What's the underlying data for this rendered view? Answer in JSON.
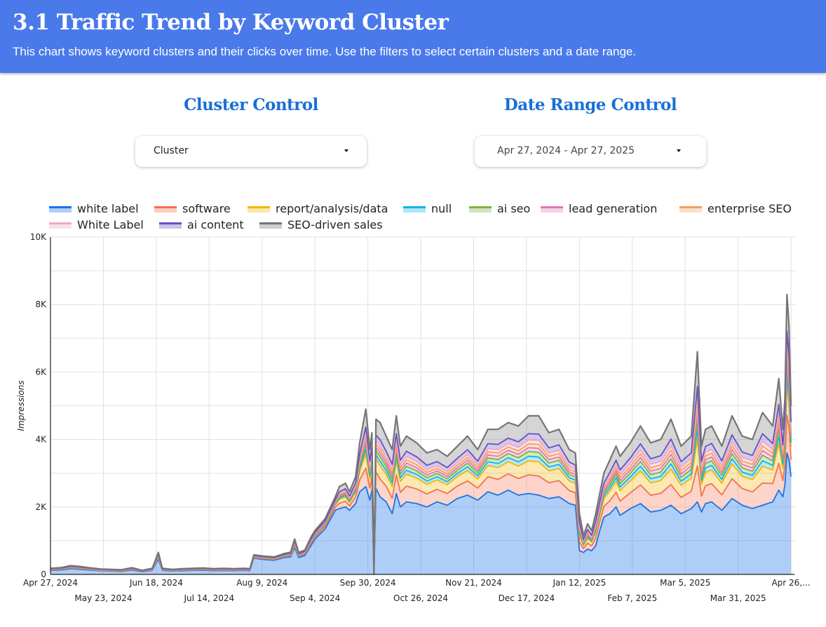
{
  "header": {
    "title": "3.1 Traffic Trend by Keyword Cluster",
    "subtitle": "This chart shows keyword clusters and their clicks over time. Use the filters to select certain clusters and a date range."
  },
  "controls": {
    "cluster": {
      "title": "Cluster Control",
      "value": "Cluster"
    },
    "date_range": {
      "title": "Date Range Control",
      "value": "Apr 27, 2024 - Apr 27, 2025"
    }
  },
  "chart_data": {
    "type": "area",
    "stacked": true,
    "title": "",
    "xlabel": "",
    "ylabel": "Impressions",
    "ylim": [
      0,
      10000
    ],
    "y_ticks": [
      "0",
      "2K",
      "4K",
      "6K",
      "8K",
      "10K"
    ],
    "y_tick_values": [
      0,
      2000,
      4000,
      6000,
      8000,
      10000
    ],
    "x_ticks_row1": [
      "Apr 27, 2024",
      "Jun 18, 2024",
      "Aug 9, 2024",
      "Sep 30, 2024",
      "Nov 21, 2024",
      "Jan 12, 2025",
      "Mar 5, 2025",
      "Apr 26,..."
    ],
    "x_ticks_row2": [
      "May 23, 2024",
      "Jul 14, 2024",
      "Sep 4, 2024",
      "Oct 26, 2024",
      "Dec 17, 2024",
      "Feb 7, 2025",
      "Mar 31, 2025"
    ],
    "x_tick_days_row1": [
      0,
      52,
      104,
      156,
      208,
      260,
      312,
      364
    ],
    "x_tick_days_row2": [
      26,
      78,
      130,
      182,
      234,
      286,
      338
    ],
    "x_range_days": [
      0,
      365
    ],
    "grid": true,
    "legend_position": "top",
    "series": [
      {
        "name": "white label",
        "color": "#1a73e8"
      },
      {
        "name": "software",
        "color": "#f4714e"
      },
      {
        "name": "report/analysis/data",
        "color": "#f6b400"
      },
      {
        "name": "null",
        "color": "#12b5e8"
      },
      {
        "name": "ai seo",
        "color": "#7cb342"
      },
      {
        "name": "lead generation",
        "color": "#e07ab5"
      },
      {
        "name": "enterprise SEO",
        "color": "#f5a05c"
      },
      {
        "name": "White Label",
        "color": "#f2a7bf"
      },
      {
        "name": "ai content",
        "color": "#6a4fc1"
      },
      {
        "name": "SEO-driven sales",
        "color": "#757575"
      }
    ],
    "days": [
      0,
      5,
      10,
      15,
      20,
      25,
      30,
      35,
      40,
      45,
      50,
      53,
      55,
      60,
      65,
      70,
      75,
      80,
      85,
      90,
      95,
      98,
      100,
      105,
      110,
      115,
      118,
      120,
      122,
      125,
      128,
      130,
      135,
      140,
      142,
      145,
      147,
      150,
      152,
      155,
      157,
      158,
      159,
      160,
      162,
      165,
      168,
      170,
      172,
      175,
      180,
      185,
      190,
      195,
      200,
      205,
      210,
      215,
      220,
      225,
      230,
      235,
      240,
      245,
      250,
      255,
      258,
      260,
      262,
      264,
      266,
      268,
      270,
      272,
      275,
      278,
      280,
      285,
      290,
      295,
      300,
      305,
      310,
      315,
      318,
      320,
      322,
      325,
      330,
      335,
      340,
      345,
      350,
      355,
      358,
      360,
      361,
      362,
      363,
      364
    ],
    "total": [
      180,
      200,
      260,
      230,
      190,
      160,
      150,
      140,
      200,
      120,
      180,
      650,
      180,
      150,
      170,
      180,
      190,
      170,
      180,
      170,
      180,
      170,
      580,
      540,
      520,
      620,
      660,
      1050,
      650,
      720,
      1100,
      1300,
      1650,
      2300,
      2600,
      2700,
      2450,
      2900,
      3900,
      4900,
      3700,
      4200,
      30,
      4600,
      4500,
      4100,
      3700,
      4700,
      3800,
      4100,
      3900,
      3600,
      3700,
      3500,
      3800,
      4100,
      3700,
      4300,
      4300,
      4500,
      4400,
      4700,
      4700,
      4200,
      4300,
      3700,
      3600,
      1800,
      1150,
      1500,
      1300,
      1800,
      2400,
      3000,
      3400,
      3800,
      3500,
      3900,
      4400,
      3900,
      4000,
      4600,
      3800,
      4100,
      6600,
      3800,
      4300,
      4400,
      3800,
      4700,
      4100,
      4000,
      4800,
      4400,
      5800,
      4300,
      5200,
      8300,
      7400,
      5000
    ],
    "white_label": [
      120,
      130,
      170,
      150,
      125,
      105,
      100,
      90,
      130,
      80,
      120,
      450,
      120,
      100,
      110,
      120,
      125,
      110,
      115,
      110,
      120,
      110,
      480,
      440,
      420,
      500,
      520,
      800,
      500,
      560,
      850,
      1050,
      1350,
      1900,
      1950,
      2000,
      1900,
      2100,
      2450,
      2600,
      2200,
      2500,
      0,
      2550,
      2300,
      2150,
      1800,
      2400,
      2000,
      2150,
      2100,
      2000,
      2150,
      2050,
      2250,
      2350,
      2200,
      2450,
      2350,
      2500,
      2350,
      2400,
      2350,
      2250,
      2300,
      2100,
      2050,
      700,
      650,
      750,
      700,
      850,
      1300,
      1700,
      1800,
      2000,
      1750,
      1950,
      2100,
      1850,
      1900,
      2050,
      1800,
      1950,
      2150,
      1850,
      2100,
      2150,
      1900,
      2250,
      2050,
      1950,
      2050,
      2150,
      2500,
      2300,
      2650,
      3600,
      3400,
      2900
    ],
    "layer_fractions": [
      0.24,
      0.18,
      0.06,
      0.06,
      0.05,
      0.05,
      0.05,
      0.08,
      0.23
    ]
  }
}
